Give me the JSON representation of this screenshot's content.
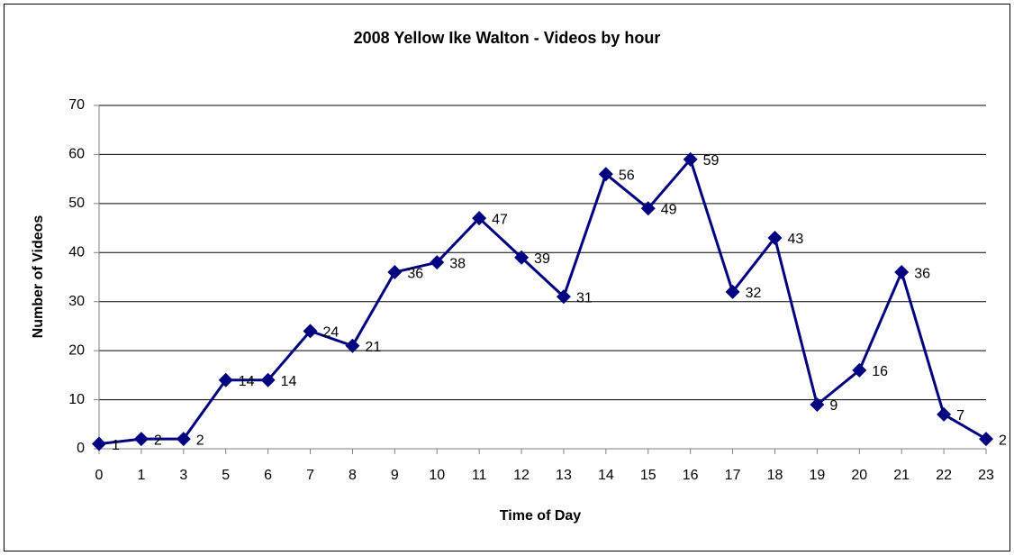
{
  "chart_data": {
    "type": "line",
    "title": "2008 Yellow Ike Walton -  Videos by hour",
    "x_label": "Time of Day",
    "y_label": "Number of Videos",
    "categories": [
      "0",
      "1",
      "3",
      "5",
      "6",
      "7",
      "8",
      "9",
      "10",
      "11",
      "12",
      "13",
      "14",
      "15",
      "16",
      "17",
      "18",
      "19",
      "20",
      "21",
      "22",
      "23"
    ],
    "values": [
      1,
      2,
      2,
      14,
      14,
      24,
      21,
      36,
      38,
      47,
      39,
      31,
      56,
      49,
      59,
      32,
      43,
      9,
      16,
      36,
      7,
      2
    ],
    "color": "#000080",
    "ylim": [
      0,
      70
    ],
    "yticks": [
      0,
      10,
      20,
      30,
      40,
      50,
      60,
      70
    ],
    "grid": true
  }
}
